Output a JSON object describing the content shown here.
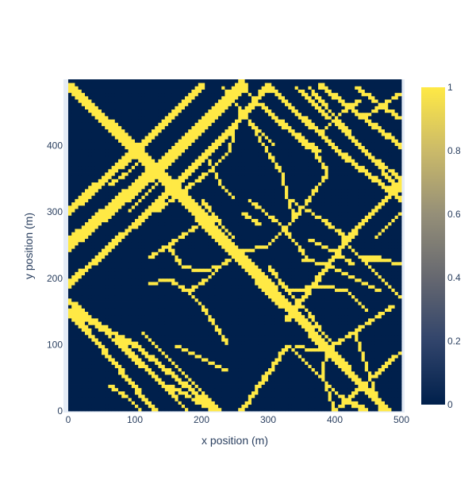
{
  "chart_data": {
    "type": "heatmap",
    "title": "",
    "xlabel": "x position (m)",
    "ylabel": "y position (m)",
    "xlim": [
      0,
      500
    ],
    "ylim": [
      0,
      500
    ],
    "grid_resolution_m": 5,
    "value_range": [
      0,
      1
    ],
    "colorscale": [
      [
        0.0,
        "#00204c"
      ],
      [
        0.2,
        "#31446b"
      ],
      [
        0.4,
        "#666870"
      ],
      [
        0.6,
        "#958f78"
      ],
      [
        0.8,
        "#cbba69"
      ],
      [
        1.0,
        "#ffe945"
      ]
    ],
    "x_ticks": [
      "0",
      "100",
      "200",
      "300",
      "400",
      "500"
    ],
    "y_ticks": [
      "0",
      "100",
      "200",
      "300",
      "400"
    ],
    "colorbar_ticks": [
      "0",
      "0.2",
      "0.4",
      "0.6",
      "0.8",
      "1"
    ],
    "background_value": 0,
    "road_value": 1,
    "road_polylines": [
      {
        "points": [
          [
            0,
            490
          ],
          [
            120,
            380
          ],
          [
            310,
            180
          ],
          [
            420,
            60
          ],
          [
            480,
            0
          ]
        ],
        "width": 14
      },
      {
        "points": [
          [
            20,
            470
          ],
          [
            140,
            350
          ],
          [
            320,
            160
          ]
        ],
        "width": 10
      },
      {
        "points": [
          [
            0,
            250
          ],
          [
            140,
            370
          ],
          [
            260,
            490
          ]
        ],
        "width": 18
      },
      {
        "points": [
          [
            0,
            300
          ],
          [
            120,
            410
          ],
          [
            200,
            490
          ]
        ],
        "width": 12
      },
      {
        "points": [
          [
            0,
            165
          ],
          [
            70,
            115
          ],
          [
            180,
            0
          ]
        ],
        "width": 6
      },
      {
        "points": [
          [
            5,
            150
          ],
          [
            100,
            100
          ],
          [
            200,
            20
          ],
          [
            220,
            0
          ]
        ],
        "width": 8
      },
      {
        "points": [
          [
            0,
            190
          ],
          [
            120,
            300
          ],
          [
            240,
            420
          ],
          [
            300,
            490
          ]
        ],
        "width": 10
      },
      {
        "points": [
          [
            110,
            120
          ],
          [
            230,
            0
          ]
        ],
        "width": 6
      },
      {
        "points": [
          [
            0,
            170
          ],
          [
            120,
            60
          ],
          [
            180,
            0
          ]
        ],
        "width": 6
      },
      {
        "points": [
          [
            150,
            40
          ],
          [
            220,
            0
          ]
        ],
        "width": 6
      },
      {
        "points": [
          [
            0,
            150
          ],
          [
            30,
            120
          ],
          [
            130,
            0
          ]
        ],
        "width": 8
      },
      {
        "points": [
          [
            260,
            0
          ],
          [
            330,
            100
          ],
          [
            410,
            20
          ],
          [
            450,
            0
          ]
        ],
        "width": 7
      },
      {
        "points": [
          [
            330,
            140
          ],
          [
            420,
            260
          ],
          [
            500,
            345
          ]
        ],
        "width": 8
      },
      {
        "points": [
          [
            400,
            0
          ],
          [
            500,
            90
          ]
        ],
        "width": 6
      },
      {
        "points": [
          [
            300,
            490
          ],
          [
            420,
            380
          ],
          [
            500,
            320
          ]
        ],
        "width": 8
      },
      {
        "points": [
          [
            380,
            490
          ],
          [
            500,
            400
          ]
        ],
        "width": 8
      },
      {
        "points": [
          [
            340,
            490
          ],
          [
            460,
            380
          ],
          [
            500,
            350
          ]
        ],
        "width": 6
      },
      {
        "points": [
          [
            430,
            490
          ],
          [
            500,
            440
          ]
        ],
        "width": 6
      },
      {
        "points": [
          [
            360,
            490
          ],
          [
            500,
            330
          ]
        ],
        "width": 6
      },
      {
        "points": [
          [
            260,
            490
          ],
          [
            300,
            450
          ],
          [
            370,
            390
          ],
          [
            390,
            360
          ],
          [
            340,
            290
          ],
          [
            300,
            250
          ]
        ],
        "width": 5
      },
      {
        "points": [
          [
            280,
            470
          ],
          [
            340,
            420
          ],
          [
            380,
            390
          ]
        ],
        "width": 5
      },
      {
        "points": [
          [
            230,
            490
          ],
          [
            270,
            440
          ],
          [
            310,
            400
          ]
        ],
        "width": 5
      },
      {
        "points": [
          [
            270,
            440
          ],
          [
            300,
            390
          ],
          [
            320,
            360
          ],
          [
            330,
            320
          ],
          [
            340,
            290
          ]
        ],
        "width": 5
      },
      {
        "points": [
          [
            330,
            320
          ],
          [
            380,
            290
          ],
          [
            420,
            260
          ]
        ],
        "width": 5
      },
      {
        "points": [
          [
            360,
            260
          ],
          [
            400,
            240
          ],
          [
            430,
            220
          ]
        ],
        "width": 5
      },
      {
        "points": [
          [
            300,
            250
          ],
          [
            260,
            240
          ],
          [
            230,
            220
          ],
          [
            210,
            200
          ],
          [
            180,
            180
          ],
          [
            150,
            200
          ],
          [
            120,
            190
          ]
        ],
        "width": 5
      },
      {
        "points": [
          [
            180,
            180
          ],
          [
            200,
            160
          ],
          [
            220,
            130
          ],
          [
            240,
            100
          ]
        ],
        "width": 5
      },
      {
        "points": [
          [
            130,
            300
          ],
          [
            170,
            330
          ],
          [
            210,
            360
          ],
          [
            240,
            390
          ],
          [
            250,
            420
          ]
        ],
        "width": 5
      },
      {
        "points": [
          [
            200,
            320
          ],
          [
            230,
            280
          ],
          [
            250,
            260
          ]
        ],
        "width": 5
      },
      {
        "points": [
          [
            260,
            300
          ],
          [
            290,
            280
          ]
        ],
        "width": 5
      },
      {
        "points": [
          [
            270,
            320
          ],
          [
            320,
            280
          ],
          [
            360,
            230
          ]
        ],
        "width": 5
      },
      {
        "points": [
          [
            300,
            220
          ],
          [
            330,
            180
          ],
          [
            360,
            150
          ],
          [
            380,
            120
          ],
          [
            400,
            100
          ]
        ],
        "width": 5
      },
      {
        "points": [
          [
            330,
            180
          ],
          [
            380,
            190
          ],
          [
            420,
            180
          ],
          [
            450,
            150
          ]
        ],
        "width": 5
      },
      {
        "points": [
          [
            340,
            100
          ],
          [
            370,
            90
          ],
          [
            400,
            100
          ],
          [
            430,
            120
          ],
          [
            460,
            140
          ],
          [
            490,
            160
          ]
        ],
        "width": 5
      },
      {
        "points": [
          [
            430,
            120
          ],
          [
            440,
            90
          ],
          [
            450,
            60
          ],
          [
            460,
            30
          ],
          [
            470,
            0
          ]
        ],
        "width": 5
      },
      {
        "points": [
          [
            390,
            90
          ],
          [
            380,
            60
          ],
          [
            390,
            30
          ],
          [
            400,
            0
          ]
        ],
        "width": 5
      },
      {
        "points": [
          [
            410,
            260
          ],
          [
            440,
            230
          ],
          [
            470,
            200
          ],
          [
            500,
            170
          ]
        ],
        "width": 5
      },
      {
        "points": [
          [
            440,
            230
          ],
          [
            470,
            230
          ],
          [
            500,
            220
          ]
        ],
        "width": 5
      },
      {
        "points": [
          [
            460,
            260
          ],
          [
            480,
            280
          ],
          [
            500,
            300
          ]
        ],
        "width": 5
      },
      {
        "points": [
          [
            120,
            230
          ],
          [
            150,
            250
          ],
          [
            180,
            270
          ],
          [
            210,
            290
          ]
        ],
        "width": 5
      },
      {
        "points": [
          [
            150,
            250
          ],
          [
            170,
            220
          ],
          [
            200,
            210
          ],
          [
            230,
            220
          ]
        ],
        "width": 5
      },
      {
        "points": [
          [
            160,
            100
          ],
          [
            200,
            80
          ],
          [
            240,
            60
          ]
        ],
        "width": 5
      },
      {
        "points": [
          [
            60,
            40
          ],
          [
            90,
            20
          ],
          [
            110,
            0
          ]
        ],
        "width": 5
      },
      {
        "points": [
          [
            440,
            440
          ],
          [
            470,
            460
          ],
          [
            500,
            480
          ]
        ],
        "width": 5
      },
      {
        "points": [
          [
            380,
            420
          ],
          [
            410,
            450
          ],
          [
            440,
            470
          ]
        ],
        "width": 5
      },
      {
        "points": [
          [
            210,
            380
          ],
          [
            230,
            340
          ],
          [
            250,
            320
          ]
        ],
        "width": 5
      },
      {
        "points": [
          [
            90,
            300
          ],
          [
            110,
            320
          ],
          [
            130,
            340
          ],
          [
            150,
            360
          ]
        ],
        "width": 5
      },
      {
        "points": [
          [
            60,
            340
          ],
          [
            90,
            360
          ],
          [
            110,
            380
          ]
        ],
        "width": 5
      },
      {
        "points": [
          [
            350,
            230
          ],
          [
            390,
            220
          ],
          [
            430,
            200
          ],
          [
            470,
            180
          ]
        ],
        "width": 5
      }
    ]
  }
}
